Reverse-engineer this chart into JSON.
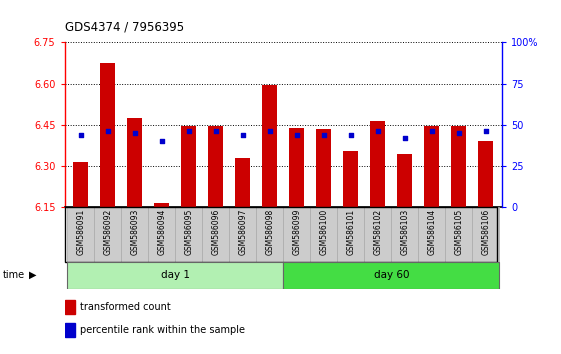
{
  "title": "GDS4374 / 7956395",
  "samples": [
    "GSM586091",
    "GSM586092",
    "GSM586093",
    "GSM586094",
    "GSM586095",
    "GSM586096",
    "GSM586097",
    "GSM586098",
    "GSM586099",
    "GSM586100",
    "GSM586101",
    "GSM586102",
    "GSM586103",
    "GSM586104",
    "GSM586105",
    "GSM586106"
  ],
  "transformed_count": [
    6.315,
    6.675,
    6.475,
    6.165,
    6.445,
    6.445,
    6.33,
    6.595,
    6.44,
    6.435,
    6.355,
    6.465,
    6.345,
    6.445,
    6.445,
    6.39
  ],
  "percentile_rank": [
    44,
    46,
    45,
    40,
    46,
    46,
    44,
    46,
    44,
    44,
    44,
    46,
    42,
    46,
    45,
    46
  ],
  "ylim_left": [
    6.15,
    6.75
  ],
  "ylim_right": [
    0,
    100
  ],
  "yticks_left": [
    6.15,
    6.3,
    6.45,
    6.6,
    6.75
  ],
  "yticks_right": [
    0,
    25,
    50,
    75,
    100
  ],
  "ytick_labels_right": [
    "0",
    "25",
    "50",
    "75",
    "100%"
  ],
  "bar_color": "#cc0000",
  "dot_color": "#0000cc",
  "bar_bottom": 6.15,
  "day1_color": "#b2f0b2",
  "day60_color": "#44dd44",
  "grid_color": "#000000",
  "legend_red_label": "transformed count",
  "legend_blue_label": "percentile rank within the sample",
  "xticklabel_bg": "#cccccc",
  "xticklabel_border": "#aaaaaa"
}
